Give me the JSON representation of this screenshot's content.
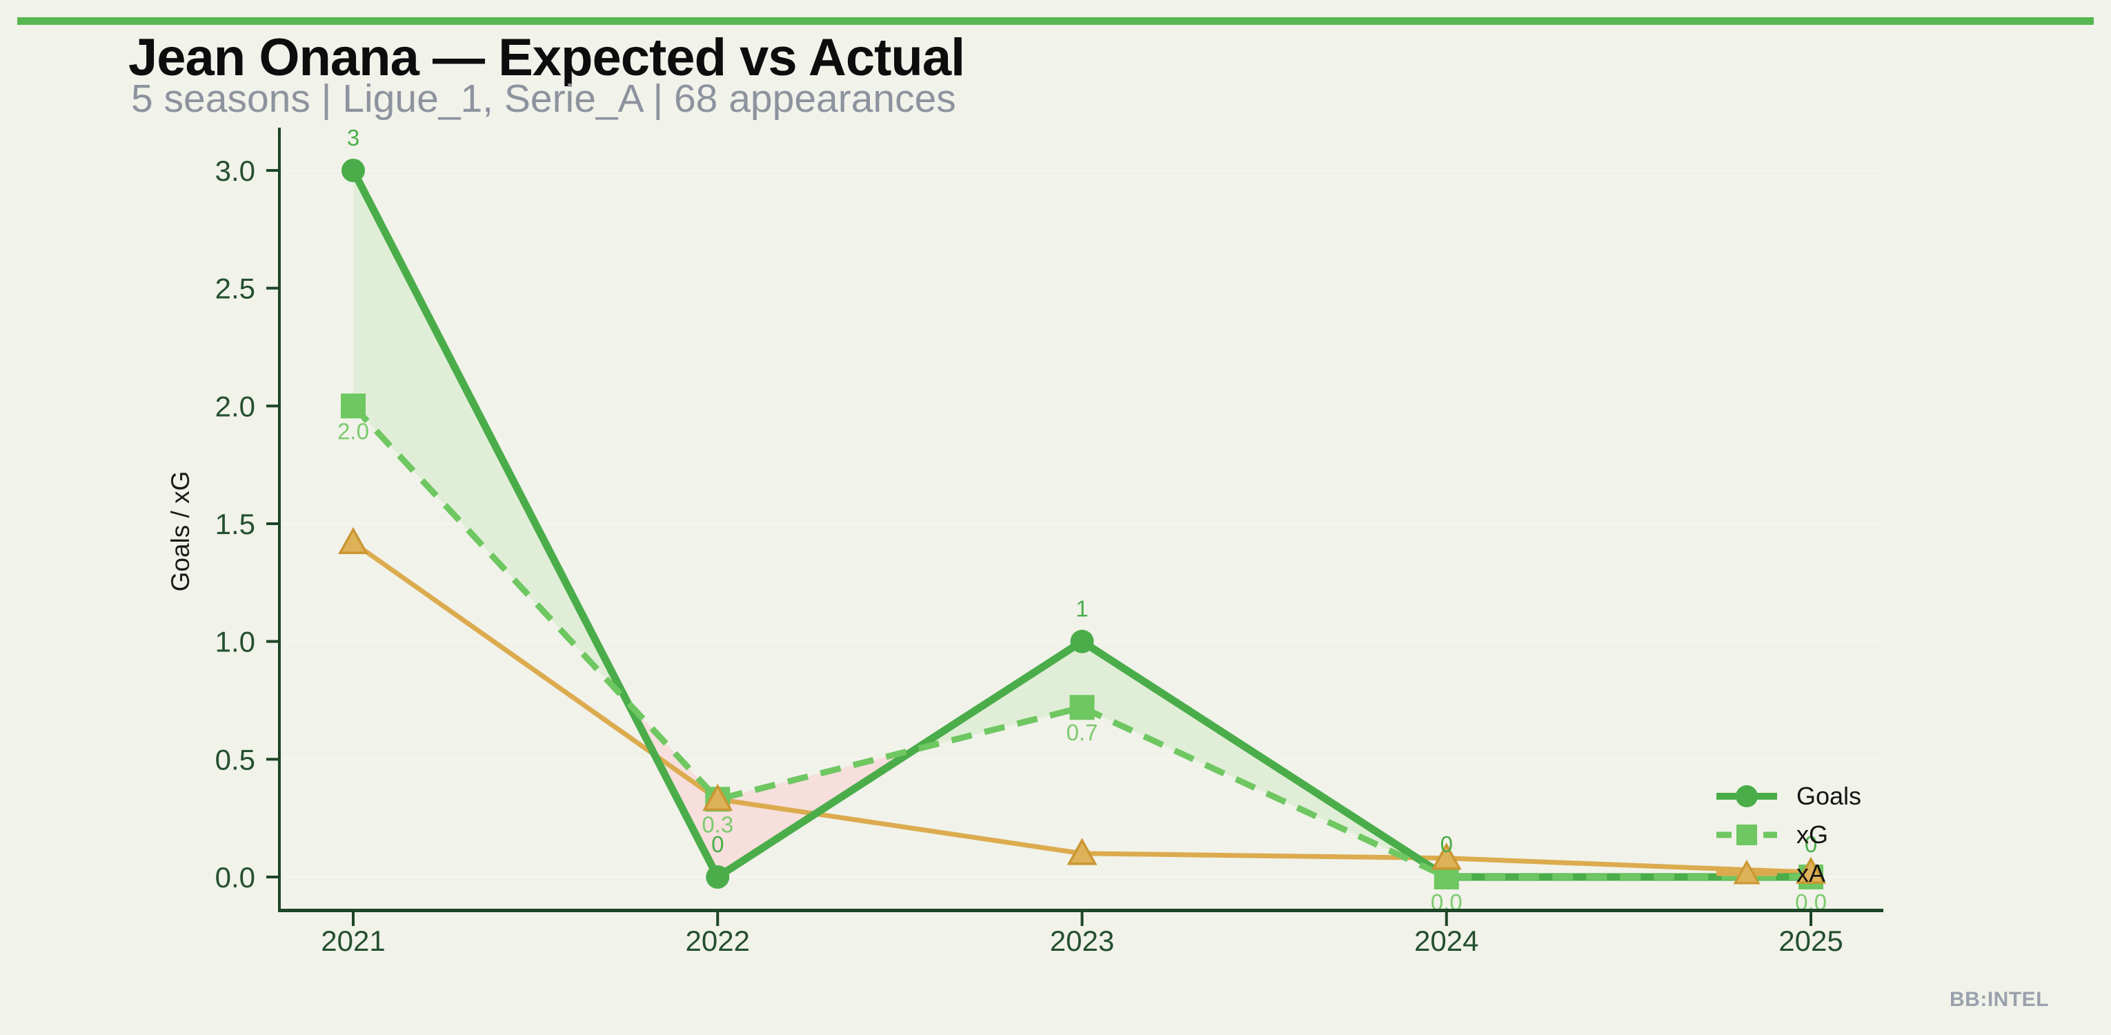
{
  "page": {
    "background_color": "#f1f2ea",
    "accent_bar_color": "#56b750"
  },
  "header": {
    "title": "Jean Onana — Expected vs Actual",
    "subtitle": "5 seasons | Ligue_1, Serie_A | 68 appearances"
  },
  "watermark": "BB:INTEL",
  "chart_data": {
    "type": "line",
    "title": "Jean Onana — Expected vs Actual",
    "subtitle": "5 seasons | Ligue_1, Serie_A | 68 appearances",
    "ylabel": "Goals / xG",
    "xlabel": "",
    "categories": [
      "2021",
      "2022",
      "2023",
      "2024",
      "2025"
    ],
    "ytick_labels": [
      "0.0",
      "0.5",
      "1.0",
      "1.5",
      "2.0",
      "2.5",
      "3.0"
    ],
    "yticks": [
      0.0,
      0.5,
      1.0,
      1.5,
      2.0,
      2.5,
      3.0
    ],
    "ylim": [
      -0.14,
      3.18
    ],
    "grid": "horizontal",
    "legend_position": "lower right",
    "series": [
      {
        "name": "Goals",
        "values": [
          3,
          0,
          1,
          0,
          0
        ],
        "point_labels": [
          "3",
          "0",
          "1",
          "0",
          "0"
        ],
        "color": "#4aad4a",
        "label_color": "#4aad4a",
        "marker": "circle",
        "line_style": "solid"
      },
      {
        "name": "xG",
        "values": [
          2.0,
          0.33,
          0.72,
          0.0,
          0.0
        ],
        "point_labels": [
          "2.0",
          "0.3",
          "0.7",
          "0.0",
          "0.0"
        ],
        "color": "#6ec761",
        "label_color": "#7bcb6e",
        "marker": "square",
        "line_style": "dashed"
      },
      {
        "name": "xA",
        "values": [
          1.42,
          0.33,
          0.1,
          0.08,
          0.02
        ],
        "point_labels": null,
        "color": "#dcab4e",
        "marker_face_color": "#ddb258",
        "marker_edge_color": "#ca9733",
        "marker": "triangle",
        "line_style": "solid"
      }
    ],
    "fill_between": {
      "series_a": "Goals",
      "series_b": "xG",
      "positive_color": "#e1eed7",
      "negative_color": "#f6dfdc"
    },
    "axis_color": "#1d4527",
    "tick_label_color": "#24502f",
    "gridline_color": "#f5f5ee"
  }
}
